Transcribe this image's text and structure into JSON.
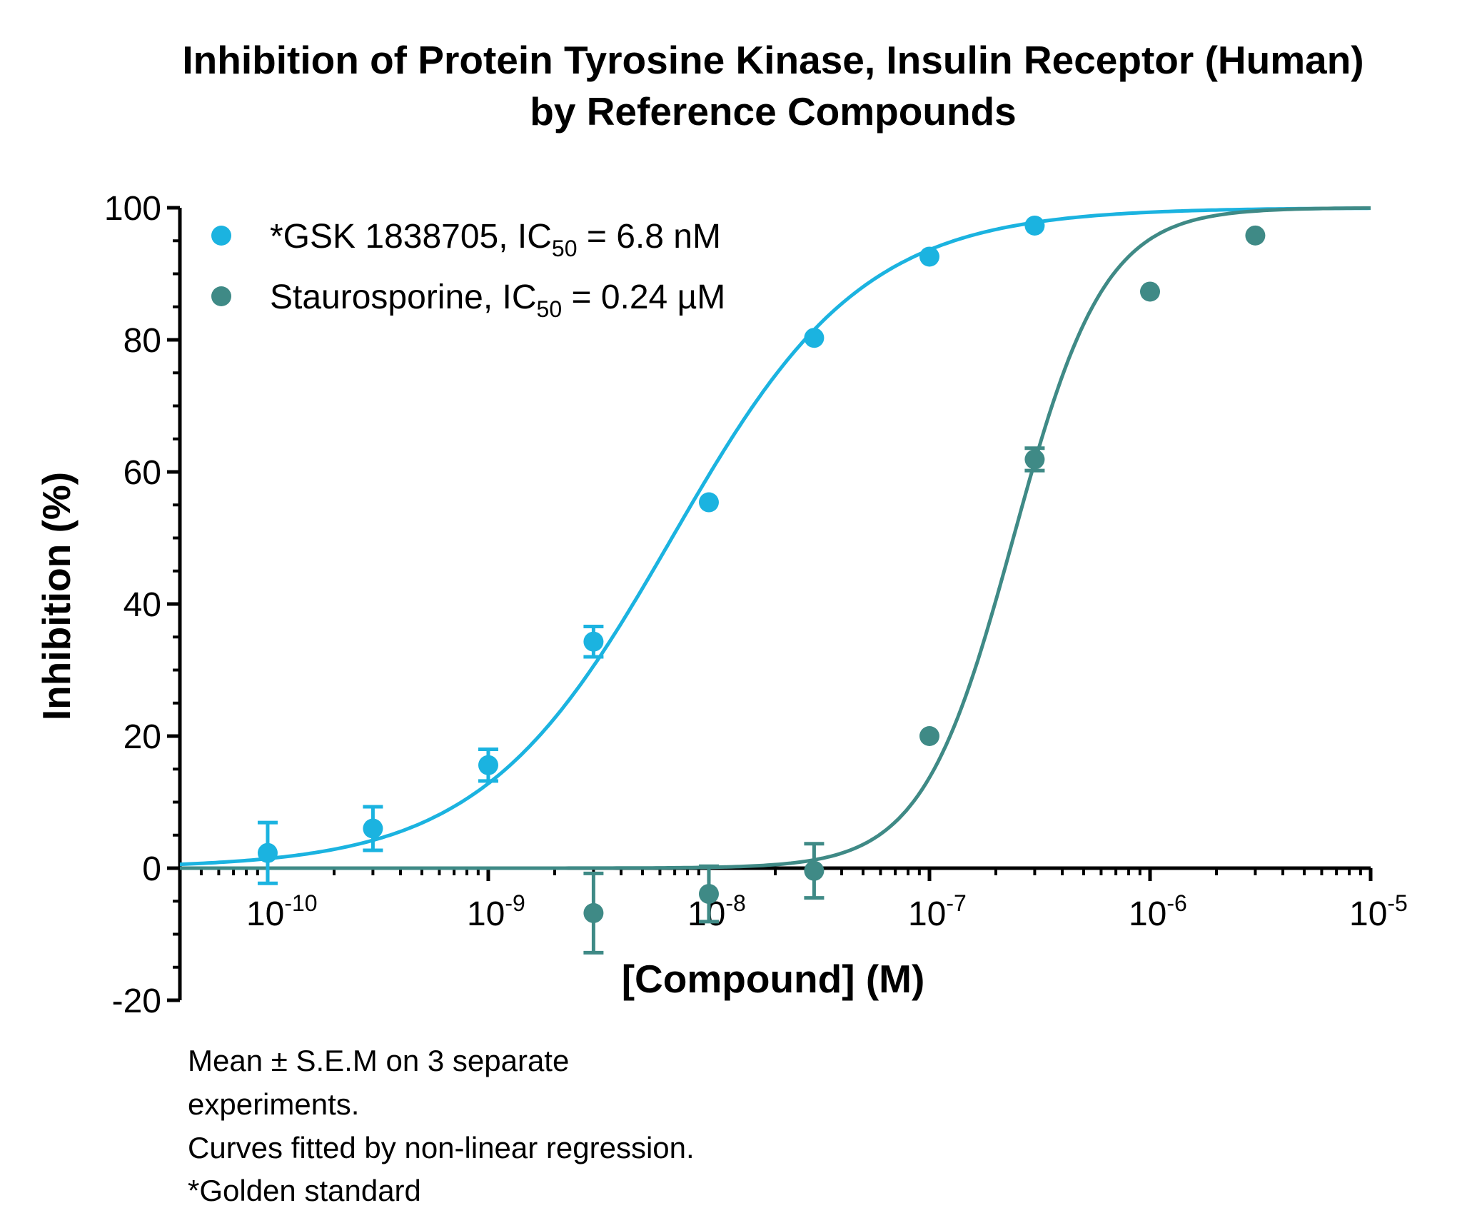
{
  "chart_data": {
    "type": "scatter",
    "title": [
      "Inhibition of Protein Tyrosine Kinase, Insulin Receptor (Human)",
      "by Reference Compounds"
    ],
    "xlabel": "[Compound] (M)",
    "ylabel": "Inhibition (%)",
    "x_scale": "log",
    "xlim": [
      4e-11,
      1e-05
    ],
    "ylim": [
      -20,
      100
    ],
    "yticks": [
      -20,
      0,
      20,
      40,
      60,
      80,
      100
    ],
    "xticks": [
      {
        "value": 1e-10,
        "base": "10",
        "exp": "-10"
      },
      {
        "value": 1e-09,
        "base": "10",
        "exp": "-9"
      },
      {
        "value": 1e-08,
        "base": "10",
        "exp": "-8"
      },
      {
        "value": 1e-07,
        "base": "10",
        "exp": "-7"
      },
      {
        "value": 1e-06,
        "base": "10",
        "exp": "-6"
      },
      {
        "value": 1e-05,
        "base": "10",
        "exp": "-5"
      }
    ],
    "legend_position": "top-left",
    "series": [
      {
        "name": "*GSK 1838705, IC50 = 6.8 nM",
        "legend_main": "*GSK 1838705, IC",
        "legend_sub": "50",
        "legend_tail": " = 6.8 nM",
        "color": "#1BB3E0",
        "ic50": 6.8e-09,
        "hill": 1.0,
        "fit_bottom": 0,
        "fit_top": 100,
        "points": [
          {
            "x": 1e-10,
            "y": 2.3,
            "err": 4.6
          },
          {
            "x": 3e-10,
            "y": 6.0,
            "err": 3.3
          },
          {
            "x": 1e-09,
            "y": 15.6,
            "err": 2.4
          },
          {
            "x": 3e-09,
            "y": 34.3,
            "err": 2.3
          },
          {
            "x": 1e-08,
            "y": 55.4,
            "err": 0
          },
          {
            "x": 3e-08,
            "y": 80.3,
            "err": 0
          },
          {
            "x": 1e-07,
            "y": 92.6,
            "err": 0
          },
          {
            "x": 3e-07,
            "y": 97.3,
            "err": 0
          }
        ]
      },
      {
        "name": "Staurosporine, IC50 = 0.24 µM",
        "legend_main": "Staurosporine, IC",
        "legend_sub": "50",
        "legend_tail": " = 0.24 µM",
        "color": "#3F8A86",
        "ic50": 2.4e-07,
        "hill": 2.1,
        "fit_bottom": 0,
        "fit_top": 100,
        "points": [
          {
            "x": 3e-09,
            "y": -6.8,
            "err": 6.0
          },
          {
            "x": 1e-08,
            "y": -3.9,
            "err": 4.2
          },
          {
            "x": 3e-08,
            "y": -0.4,
            "err": 4.1
          },
          {
            "x": 1e-07,
            "y": 20.0,
            "err": 0
          },
          {
            "x": 3e-07,
            "y": 61.9,
            "err": 1.7
          },
          {
            "x": 1e-06,
            "y": 87.3,
            "err": 0
          },
          {
            "x": 3e-06,
            "y": 95.8,
            "err": 0
          }
        ]
      }
    ]
  },
  "footnotes": [
    "Mean ± S.E.M on 3 separate",
    "experiments.",
    "Curves fitted by non-linear regression.",
    "*Golden standard"
  ]
}
